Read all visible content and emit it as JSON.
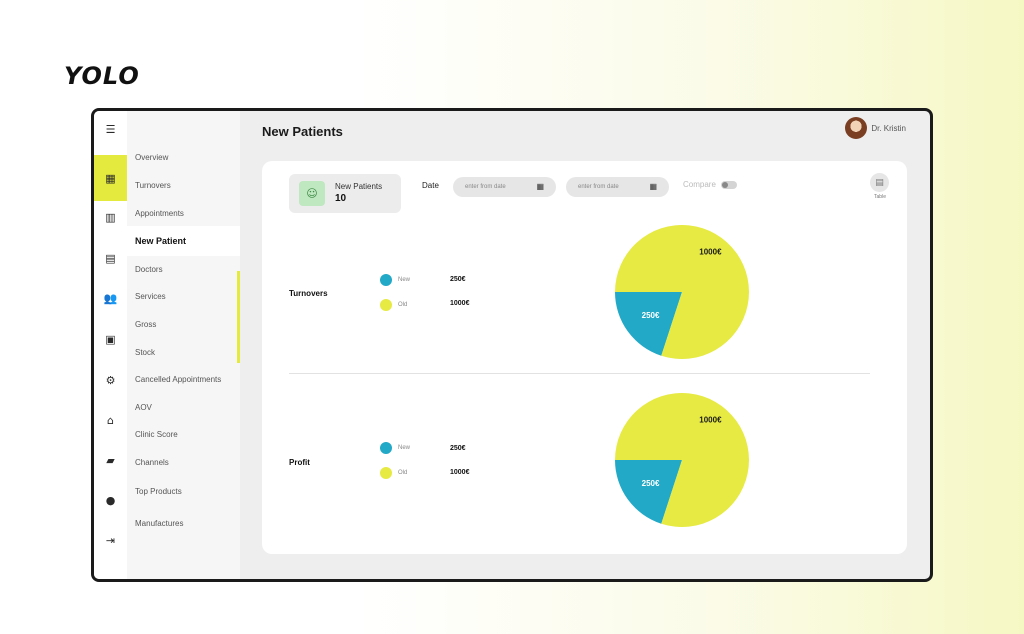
{
  "brand": "YOLO",
  "header": {
    "page_title": "New Patients",
    "user_name": "Dr. Kristin"
  },
  "rail_icons": [
    "menu-icon",
    "dashboard-icon",
    "calendar-icon",
    "document-icon",
    "users-icon",
    "clipboard-icon",
    "gear-icon",
    "bank-icon",
    "briefcase-icon",
    "account-icon",
    "logout-icon"
  ],
  "sidebar": {
    "items": [
      {
        "label": "Overview"
      },
      {
        "label": "Turnovers"
      },
      {
        "label": "Appointments"
      },
      {
        "label": "New Patient"
      },
      {
        "label": "Doctors"
      },
      {
        "label": "Services"
      },
      {
        "label": "Gross"
      },
      {
        "label": "Stock"
      },
      {
        "label": "Cancelled Appointments"
      },
      {
        "label": "AOV"
      },
      {
        "label": "Clinic Score"
      },
      {
        "label": "Channels"
      },
      {
        "label": "Top Products"
      },
      {
        "label": "Manufactures"
      }
    ],
    "active_index": 3
  },
  "summary": {
    "label": "New Patients",
    "value": "10"
  },
  "filters": {
    "date_label": "Date",
    "from_placeholder": "enter from date",
    "to_placeholder": "enter from date",
    "compare_label": "Compare",
    "table_label": "Table"
  },
  "colors": {
    "new": "#22a9c7",
    "old": "#e6ea42",
    "accent": "#e4ea3e"
  },
  "sections": [
    {
      "title": "Turnovers",
      "legend": [
        {
          "label": "New",
          "value": "250€"
        },
        {
          "label": "Old",
          "value": "1000€"
        }
      ]
    },
    {
      "title": "Profit",
      "legend": [
        {
          "label": "New",
          "value": "250€"
        },
        {
          "label": "Old",
          "value": "1000€"
        }
      ]
    }
  ],
  "chart_data": [
    {
      "type": "pie",
      "title": "",
      "categories": [
        "New",
        "Old"
      ],
      "values": [
        250,
        1000
      ],
      "labels": [
        "250€",
        "1000€"
      ]
    },
    {
      "type": "pie",
      "title": "",
      "categories": [
        "New",
        "Old"
      ],
      "values": [
        250,
        1000
      ],
      "labels": [
        "250€",
        "1000€"
      ]
    }
  ]
}
